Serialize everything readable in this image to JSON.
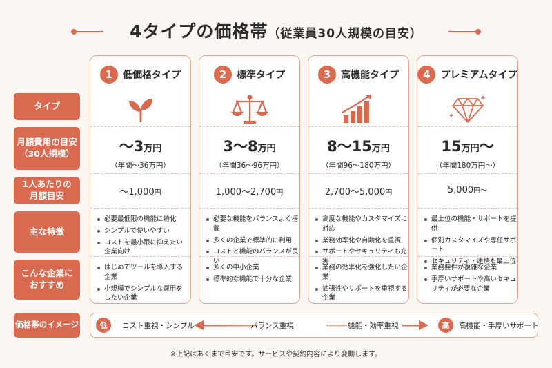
{
  "title": {
    "main": "4タイプの価格帯",
    "sub": "（従業員30人規模の目安）"
  },
  "row_labels": [
    "タイプ",
    "月額費用の目安\n（30人規模）",
    "1人あたりの\n月額目安",
    "主な特徴",
    "こんな企業に\nおすすめ",
    "価格帯のイメージ"
  ],
  "types": [
    {
      "num": "1",
      "name": "低価格タイプ",
      "icon": "sprout-icon",
      "price_range": "～3",
      "price_unit": "万円",
      "price_range_suffix": "",
      "annual": "（年間～36万円）",
      "per_person": "～1,000",
      "per_person_unit": "円",
      "features": [
        "必要最低限の機能に特化",
        "シンプルで使いやすい",
        "コストを最小限に抑えたい企業向け"
      ],
      "recommend": [
        "はじめてツールを導入する企業",
        "小規模でシンプルな運用をしたい企業"
      ]
    },
    {
      "num": "2",
      "name": "標準タイプ",
      "icon": "scales-icon",
      "price_range": "3～8",
      "price_unit": "万円",
      "price_range_suffix": "",
      "annual": "（年間36～96万円）",
      "per_person": "1,000～2,700",
      "per_person_unit": "円",
      "features": [
        "必要な機能をバランスよく搭載",
        "多くの企業で標準的に利用",
        "コストと機能のバランスが良い"
      ],
      "recommend": [
        "多くの中小企業",
        "標準的な機能で十分な企業"
      ]
    },
    {
      "num": "3",
      "name": "高機能タイプ",
      "icon": "growth-chart-icon",
      "price_range": "8～15",
      "price_unit": "万円",
      "price_range_suffix": "",
      "annual": "（年間96～180万円）",
      "per_person": "2,700～5,000",
      "per_person_unit": "円",
      "features": [
        "高度な機能やカスタマイズに対応",
        "業務効率化や自動化を重視",
        "サポートやセキュリティも充実"
      ],
      "recommend": [
        "業務の効率化を強化したい企業",
        "拡張性やサポートを重視する企業"
      ]
    },
    {
      "num": "4",
      "name": "プレミアムタイプ",
      "icon": "diamond-icon",
      "price_range": "15",
      "price_unit": "万円",
      "price_range_suffix": "～",
      "annual": "（年間180万円～）",
      "per_person": "5,000",
      "per_person_unit": "円～",
      "features": [
        "最上位の機能・サポートを提供",
        "個別カスタマイズや専任サポート",
        "セキュリティ・連携も最上位"
      ],
      "recommend": [
        "業務要件が複雑な企業",
        "手厚いサポートや高いセキュリティが必要な企業"
      ]
    }
  ],
  "scale": {
    "low_badge": "低",
    "low_text": "コスト重視・シンプル",
    "mid_text": "バランス重視",
    "mid2_text": "機能・効率重視",
    "high_badge": "高",
    "high_text": "高機能・手厚いサポート"
  },
  "note": "※上記はあくまで目安です。サービスや契約内容により変動します。",
  "colors": {
    "accent": "#d9694f",
    "card_border": "#e3a593",
    "background": "#faf6f1"
  }
}
